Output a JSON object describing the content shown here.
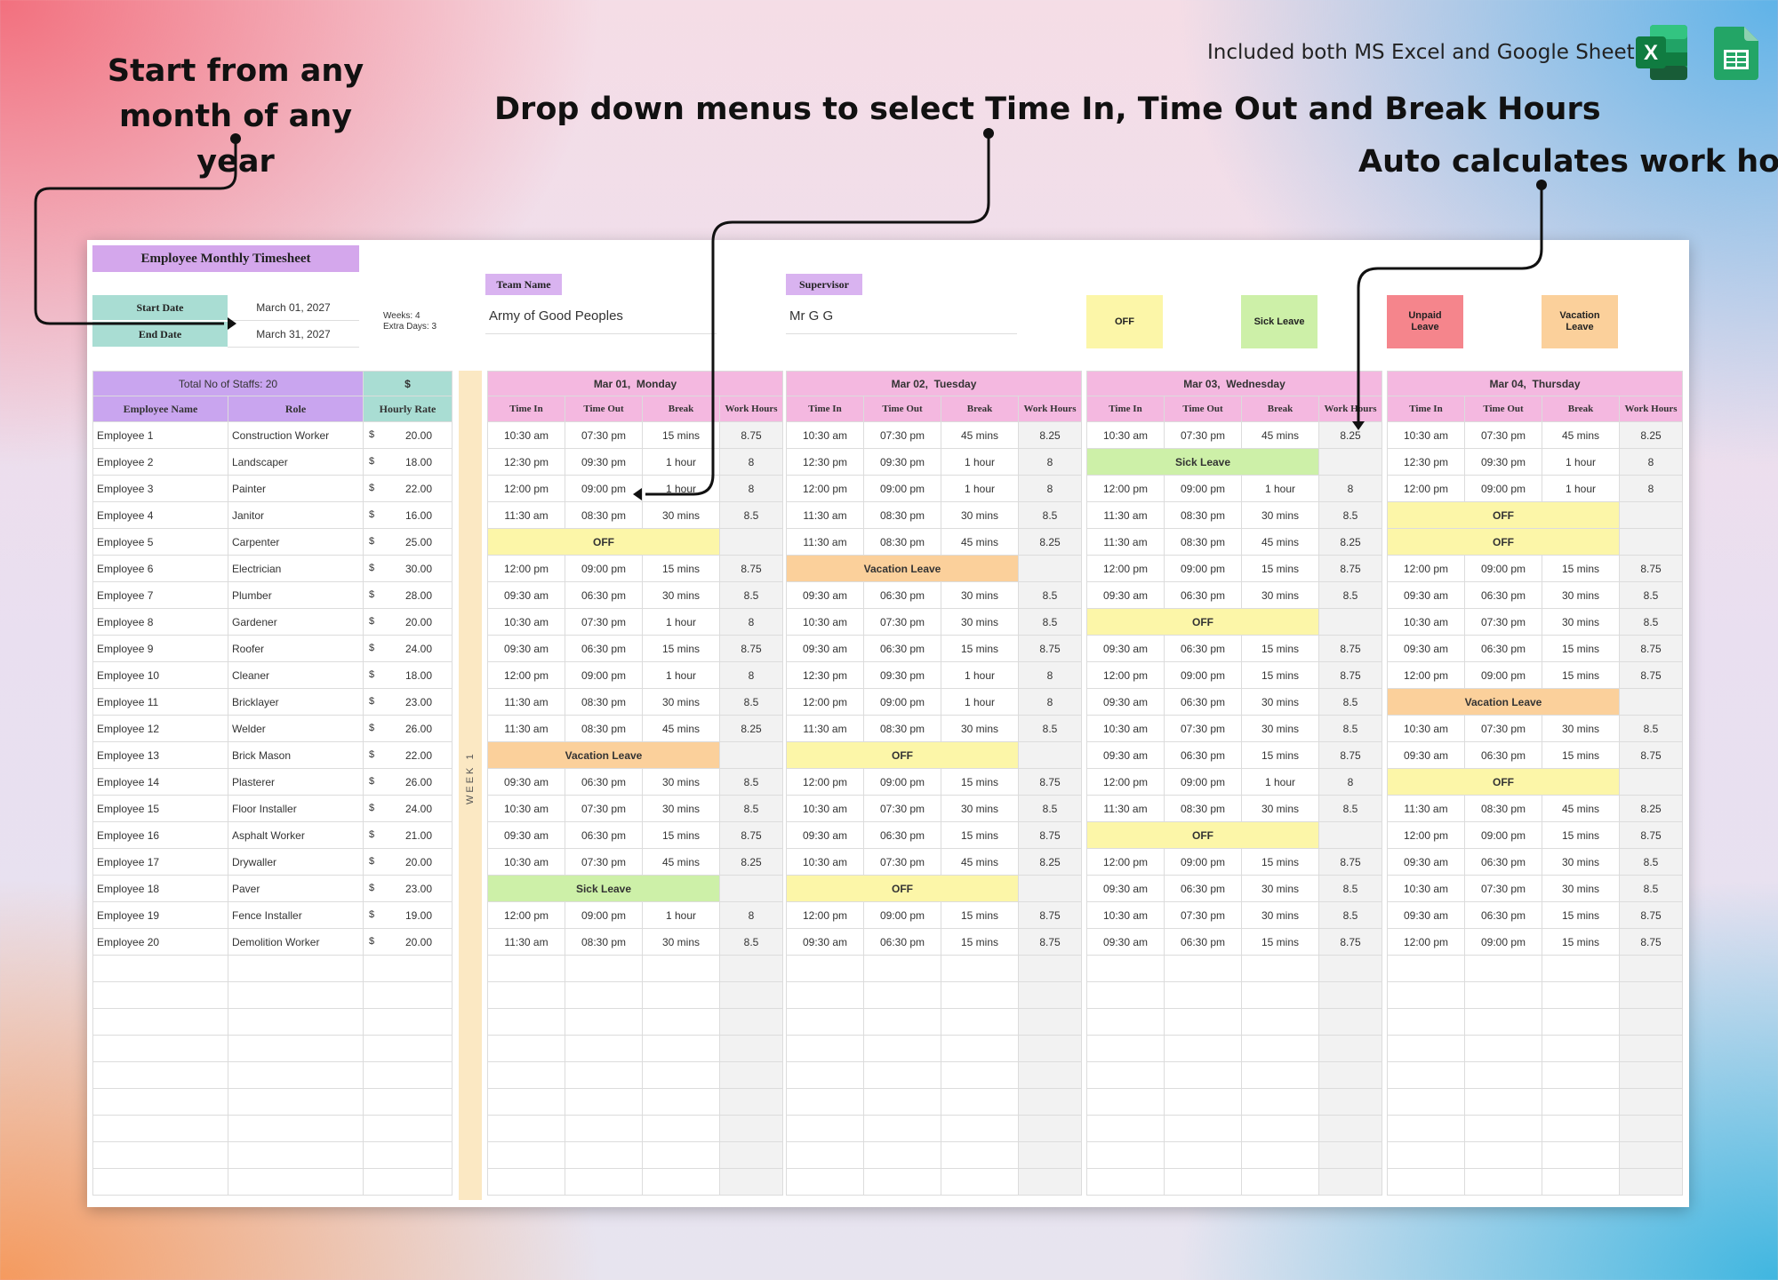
{
  "annotations": {
    "start": "Start from any month of any year",
    "dropdowns": "Drop down menus to select Time In, Time Out and Break Hours",
    "auto": "Auto calculates work hours"
  },
  "header": {
    "included": "Included both MS Excel and Google Sheets"
  },
  "icons": {
    "excel": "excel-icon",
    "sheets": "google-sheets-icon"
  },
  "sheet": {
    "title": "Employee Monthly Timesheet",
    "start_date_label": "Start Date",
    "start_date": "March 01, 2027",
    "end_date_label": "End Date",
    "end_date": "March 31, 2027",
    "weeks_note": "Weeks: 4",
    "extra_days_note": "Extra Days: 3",
    "team_name_label": "Team Name",
    "team_name": "Army of Good Peoples",
    "supervisor_label": "Supervisor",
    "supervisor": "Mr G G",
    "legend": {
      "off": "OFF",
      "sick": "Sick Leave",
      "unpaid": "Unpaid\nLeave",
      "vacation": "Vacation\nLeave"
    },
    "colors": {
      "off": "#fcf6a8",
      "sick": "#cdf0a8",
      "unpaid": "#f5858c",
      "vacation": "#fbd09b",
      "title": "#d4a7ec",
      "teal": "#a9ddd3",
      "day_header": "#f4b8e0",
      "week_strip": "#fbe8c3"
    },
    "total_staff": "Total No of Staffs: 20",
    "currency_header": "$",
    "col_name": "Employee Name",
    "col_role": "Role",
    "col_rate": "Hourly Rate",
    "currency_symbol": "$",
    "week_label": "WEEK 1",
    "day_cols": {
      "time_in": "Time In",
      "time_out": "Time Out",
      "break": "Break",
      "work_hours": "Work Hours"
    },
    "employees": [
      {
        "name": "Employee 1",
        "role": "Construction Worker",
        "rate": "20.00"
      },
      {
        "name": "Employee 2",
        "role": "Landscaper",
        "rate": "18.00"
      },
      {
        "name": "Employee 3",
        "role": "Painter",
        "rate": "22.00"
      },
      {
        "name": "Employee 4",
        "role": "Janitor",
        "rate": "16.00"
      },
      {
        "name": "Employee 5",
        "role": "Carpenter",
        "rate": "25.00"
      },
      {
        "name": "Employee 6",
        "role": "Electrician",
        "rate": "30.00"
      },
      {
        "name": "Employee 7",
        "role": "Plumber",
        "rate": "28.00"
      },
      {
        "name": "Employee 8",
        "role": "Gardener",
        "rate": "20.00"
      },
      {
        "name": "Employee 9",
        "role": "Roofer",
        "rate": "24.00"
      },
      {
        "name": "Employee 10",
        "role": "Cleaner",
        "rate": "18.00"
      },
      {
        "name": "Employee 11",
        "role": "Bricklayer",
        "rate": "23.00"
      },
      {
        "name": "Employee 12",
        "role": "Welder",
        "rate": "26.00"
      },
      {
        "name": "Employee 13",
        "role": "Brick Mason",
        "rate": "22.00"
      },
      {
        "name": "Employee 14",
        "role": "Plasterer",
        "rate": "26.00"
      },
      {
        "name": "Employee 15",
        "role": "Floor Installer",
        "rate": "24.00"
      },
      {
        "name": "Employee 16",
        "role": "Asphalt Worker",
        "rate": "21.00"
      },
      {
        "name": "Employee 17",
        "role": "Drywaller",
        "rate": "20.00"
      },
      {
        "name": "Employee 18",
        "role": "Paver",
        "rate": "23.00"
      },
      {
        "name": "Employee 19",
        "role": "Fence Installer",
        "rate": "19.00"
      },
      {
        "name": "Employee 20",
        "role": "Demolition Worker",
        "rate": "20.00"
      }
    ],
    "days": [
      {
        "date": "Mar 01,",
        "weekday": "Monday",
        "rows": [
          {
            "in": "10:30 am",
            "out": "07:30 pm",
            "brk": "15 mins",
            "wh": "8.75"
          },
          {
            "in": "12:30 pm",
            "out": "09:30 pm",
            "brk": "1 hour",
            "wh": "8"
          },
          {
            "in": "12:00 pm",
            "out": "09:00 pm",
            "brk": "1 hour",
            "wh": "8"
          },
          {
            "in": "11:30 am",
            "out": "08:30 pm",
            "brk": "30 mins",
            "wh": "8.5"
          },
          {
            "status": "off",
            "label": "OFF"
          },
          {
            "in": "12:00 pm",
            "out": "09:00 pm",
            "brk": "15 mins",
            "wh": "8.75"
          },
          {
            "in": "09:30 am",
            "out": "06:30 pm",
            "brk": "30 mins",
            "wh": "8.5"
          },
          {
            "in": "10:30 am",
            "out": "07:30 pm",
            "brk": "1 hour",
            "wh": "8"
          },
          {
            "in": "09:30 am",
            "out": "06:30 pm",
            "brk": "15 mins",
            "wh": "8.75"
          },
          {
            "in": "12:00 pm",
            "out": "09:00 pm",
            "brk": "1 hour",
            "wh": "8"
          },
          {
            "in": "11:30 am",
            "out": "08:30 pm",
            "brk": "30 mins",
            "wh": "8.5"
          },
          {
            "in": "11:30 am",
            "out": "08:30 pm",
            "brk": "45 mins",
            "wh": "8.25"
          },
          {
            "status": "vac",
            "label": "Vacation Leave"
          },
          {
            "in": "09:30 am",
            "out": "06:30 pm",
            "brk": "30 mins",
            "wh": "8.5"
          },
          {
            "in": "10:30 am",
            "out": "07:30 pm",
            "brk": "30 mins",
            "wh": "8.5"
          },
          {
            "in": "09:30 am",
            "out": "06:30 pm",
            "brk": "15 mins",
            "wh": "8.75"
          },
          {
            "in": "10:30 am",
            "out": "07:30 pm",
            "brk": "45 mins",
            "wh": "8.25"
          },
          {
            "status": "sick",
            "label": "Sick Leave"
          },
          {
            "in": "12:00 pm",
            "out": "09:00 pm",
            "brk": "1 hour",
            "wh": "8"
          },
          {
            "in": "11:30 am",
            "out": "08:30 pm",
            "brk": "30 mins",
            "wh": "8.5"
          }
        ]
      },
      {
        "date": "Mar 02,",
        "weekday": "Tuesday",
        "rows": [
          {
            "in": "10:30 am",
            "out": "07:30 pm",
            "brk": "45 mins",
            "wh": "8.25"
          },
          {
            "in": "12:30 pm",
            "out": "09:30 pm",
            "brk": "1 hour",
            "wh": "8"
          },
          {
            "in": "12:00 pm",
            "out": "09:00 pm",
            "brk": "1 hour",
            "wh": "8"
          },
          {
            "in": "11:30 am",
            "out": "08:30 pm",
            "brk": "30 mins",
            "wh": "8.5"
          },
          {
            "in": "11:30 am",
            "out": "08:30 pm",
            "brk": "45 mins",
            "wh": "8.25"
          },
          {
            "status": "vac",
            "label": "Vacation Leave"
          },
          {
            "in": "09:30 am",
            "out": "06:30 pm",
            "brk": "30 mins",
            "wh": "8.5"
          },
          {
            "in": "10:30 am",
            "out": "07:30 pm",
            "brk": "30 mins",
            "wh": "8.5"
          },
          {
            "in": "09:30 am",
            "out": "06:30 pm",
            "brk": "15 mins",
            "wh": "8.75"
          },
          {
            "in": "12:30 pm",
            "out": "09:30 pm",
            "brk": "1 hour",
            "wh": "8"
          },
          {
            "in": "12:00 pm",
            "out": "09:00 pm",
            "brk": "1 hour",
            "wh": "8"
          },
          {
            "in": "11:30 am",
            "out": "08:30 pm",
            "brk": "30 mins",
            "wh": "8.5"
          },
          {
            "status": "off",
            "label": "OFF"
          },
          {
            "in": "12:00 pm",
            "out": "09:00 pm",
            "brk": "15 mins",
            "wh": "8.75"
          },
          {
            "in": "10:30 am",
            "out": "07:30 pm",
            "brk": "30 mins",
            "wh": "8.5"
          },
          {
            "in": "09:30 am",
            "out": "06:30 pm",
            "brk": "15 mins",
            "wh": "8.75"
          },
          {
            "in": "10:30 am",
            "out": "07:30 pm",
            "brk": "45 mins",
            "wh": "8.25"
          },
          {
            "status": "off",
            "label": "OFF"
          },
          {
            "in": "12:00 pm",
            "out": "09:00 pm",
            "brk": "15 mins",
            "wh": "8.75"
          },
          {
            "in": "09:30 am",
            "out": "06:30 pm",
            "brk": "15 mins",
            "wh": "8.75"
          }
        ]
      },
      {
        "date": "Mar 03,",
        "weekday": "Wednesday",
        "rows": [
          {
            "in": "10:30 am",
            "out": "07:30 pm",
            "brk": "45 mins",
            "wh": "8.25"
          },
          {
            "status": "sick",
            "label": "Sick Leave"
          },
          {
            "in": "12:00 pm",
            "out": "09:00 pm",
            "brk": "1 hour",
            "wh": "8"
          },
          {
            "in": "11:30 am",
            "out": "08:30 pm",
            "brk": "30 mins",
            "wh": "8.5"
          },
          {
            "in": "11:30 am",
            "out": "08:30 pm",
            "brk": "45 mins",
            "wh": "8.25"
          },
          {
            "in": "12:00 pm",
            "out": "09:00 pm",
            "brk": "15 mins",
            "wh": "8.75"
          },
          {
            "in": "09:30 am",
            "out": "06:30 pm",
            "brk": "30 mins",
            "wh": "8.5"
          },
          {
            "status": "off",
            "label": "OFF"
          },
          {
            "in": "09:30 am",
            "out": "06:30 pm",
            "brk": "15 mins",
            "wh": "8.75"
          },
          {
            "in": "12:00 pm",
            "out": "09:00 pm",
            "brk": "15 mins",
            "wh": "8.75"
          },
          {
            "in": "09:30 am",
            "out": "06:30 pm",
            "brk": "30 mins",
            "wh": "8.5"
          },
          {
            "in": "10:30 am",
            "out": "07:30 pm",
            "brk": "30 mins",
            "wh": "8.5"
          },
          {
            "in": "09:30 am",
            "out": "06:30 pm",
            "brk": "15 mins",
            "wh": "8.75"
          },
          {
            "in": "12:00 pm",
            "out": "09:00 pm",
            "brk": "1 hour",
            "wh": "8"
          },
          {
            "in": "11:30 am",
            "out": "08:30 pm",
            "brk": "30 mins",
            "wh": "8.5"
          },
          {
            "status": "off",
            "label": "OFF"
          },
          {
            "in": "12:00 pm",
            "out": "09:00 pm",
            "brk": "15 mins",
            "wh": "8.75"
          },
          {
            "in": "09:30 am",
            "out": "06:30 pm",
            "brk": "30 mins",
            "wh": "8.5"
          },
          {
            "in": "10:30 am",
            "out": "07:30 pm",
            "brk": "30 mins",
            "wh": "8.5"
          },
          {
            "in": "09:30 am",
            "out": "06:30 pm",
            "brk": "15 mins",
            "wh": "8.75"
          }
        ]
      },
      {
        "date": "Mar 04,",
        "weekday": "Thursday",
        "rows": [
          {
            "in": "10:30 am",
            "out": "07:30 pm",
            "brk": "45 mins",
            "wh": "8.25"
          },
          {
            "in": "12:30 pm",
            "out": "09:30 pm",
            "brk": "1 hour",
            "wh": "8"
          },
          {
            "in": "12:00 pm",
            "out": "09:00 pm",
            "brk": "1 hour",
            "wh": "8"
          },
          {
            "status": "off",
            "label": "OFF"
          },
          {
            "status": "off",
            "label": "OFF"
          },
          {
            "in": "12:00 pm",
            "out": "09:00 pm",
            "brk": "15 mins",
            "wh": "8.75"
          },
          {
            "in": "09:30 am",
            "out": "06:30 pm",
            "brk": "30 mins",
            "wh": "8.5"
          },
          {
            "in": "10:30 am",
            "out": "07:30 pm",
            "brk": "30 mins",
            "wh": "8.5"
          },
          {
            "in": "09:30 am",
            "out": "06:30 pm",
            "brk": "15 mins",
            "wh": "8.75"
          },
          {
            "in": "12:00 pm",
            "out": "09:00 pm",
            "brk": "15 mins",
            "wh": "8.75"
          },
          {
            "status": "vac",
            "label": "Vacation Leave"
          },
          {
            "in": "10:30 am",
            "out": "07:30 pm",
            "brk": "30 mins",
            "wh": "8.5"
          },
          {
            "in": "09:30 am",
            "out": "06:30 pm",
            "brk": "15 mins",
            "wh": "8.75"
          },
          {
            "status": "off",
            "label": "OFF"
          },
          {
            "in": "11:30 am",
            "out": "08:30 pm",
            "brk": "45 mins",
            "wh": "8.25"
          },
          {
            "in": "12:00 pm",
            "out": "09:00 pm",
            "brk": "15 mins",
            "wh": "8.75"
          },
          {
            "in": "09:30 am",
            "out": "06:30 pm",
            "brk": "30 mins",
            "wh": "8.5"
          },
          {
            "in": "10:30 am",
            "out": "07:30 pm",
            "brk": "30 mins",
            "wh": "8.5"
          },
          {
            "in": "09:30 am",
            "out": "06:30 pm",
            "brk": "15 mins",
            "wh": "8.75"
          },
          {
            "in": "12:00 pm",
            "out": "09:00 pm",
            "brk": "15 mins",
            "wh": "8.75"
          }
        ]
      }
    ]
  }
}
